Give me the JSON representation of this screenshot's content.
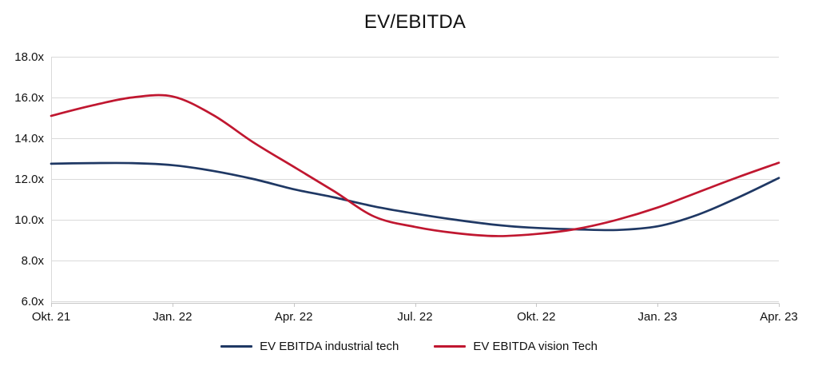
{
  "title": "EV/EBITDA",
  "colors": {
    "industrial_line": "#1F3864",
    "vision_line": "#C01730",
    "gridline": "#DADADA",
    "axis_line": "#C6C6C6",
    "text": "#111111",
    "background": "#FFFFFF"
  },
  "chart_data": {
    "type": "line",
    "title": "EV/EBITDA",
    "xlabel": "",
    "ylabel": "",
    "ylim": [
      6,
      18
    ],
    "grid": "horizontal",
    "legend_position": "bottom",
    "y_tick_labels": [
      "18.0x",
      "16.0x",
      "14.0x",
      "12.0x",
      "10.0x",
      "8.0x",
      "6.0x"
    ],
    "y_tick_values": [
      18,
      16,
      14,
      12,
      10,
      8,
      6
    ],
    "x_tick_labels": [
      "Okt. 21",
      "Jan. 22",
      "Apr. 22",
      "Jul. 22",
      "Okt. 22",
      "Jan. 23",
      "Apr. 23"
    ],
    "x_tick_indices": [
      0,
      3,
      6,
      9,
      12,
      15,
      18
    ],
    "x": [
      "Okt. 21",
      "Nov. 21",
      "Dez. 21",
      "Jan. 22",
      "Feb. 22",
      "Mär. 22",
      "Apr. 22",
      "Mai 22",
      "Jun. 22",
      "Jul. 22",
      "Aug. 22",
      "Sep. 22",
      "Okt. 22",
      "Nov. 22",
      "Dez. 22",
      "Jan. 23",
      "Feb. 23",
      "Mär. 23",
      "Apr. 23"
    ],
    "series": [
      {
        "name": "EV EBITDA industrial tech",
        "color": "#1F3864",
        "values": [
          12.75,
          12.78,
          12.78,
          12.68,
          12.4,
          12.0,
          11.5,
          11.1,
          10.65,
          10.3,
          10.0,
          9.75,
          9.6,
          9.53,
          9.5,
          9.68,
          10.25,
          11.1,
          12.05
        ]
      },
      {
        "name": "EV EBITDA vision Tech",
        "color": "#C01730",
        "values": [
          15.1,
          15.6,
          16.0,
          16.05,
          15.15,
          13.8,
          12.6,
          11.4,
          10.15,
          9.65,
          9.35,
          9.2,
          9.3,
          9.55,
          10.0,
          10.6,
          11.35,
          12.1,
          12.8
        ]
      }
    ]
  }
}
